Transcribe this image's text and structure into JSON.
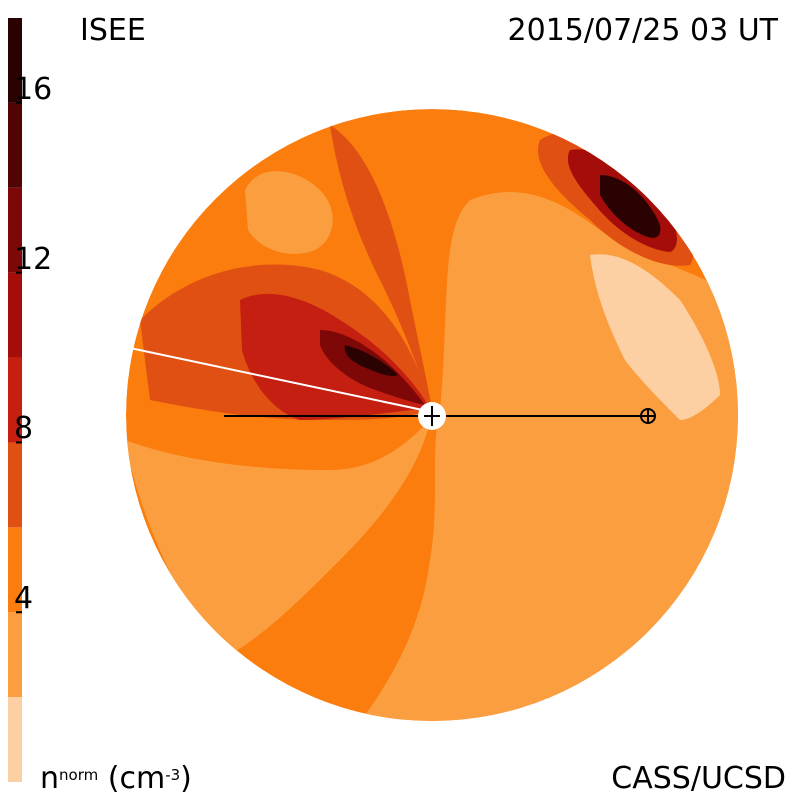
{
  "header": {
    "observatory": "ISEE",
    "datetime": "2015/07/25 03 UT"
  },
  "footer": {
    "credit": "CASS/UCSD",
    "quantity": "n",
    "quantity_sup": "norm",
    "unit_prefix": "(cm",
    "unit_sup": "-3",
    "unit_suffix": ")"
  },
  "colorbar": {
    "min": 0,
    "max": 18,
    "ticks": [
      {
        "value": 4,
        "label": "4"
      },
      {
        "value": 8,
        "label": "8"
      },
      {
        "value": 12,
        "label": "12"
      },
      {
        "value": 16,
        "label": "16"
      }
    ],
    "levels": [
      {
        "from": 0,
        "to": 2,
        "color": "#fdd0a4"
      },
      {
        "from": 2,
        "to": 4,
        "color": "#fb9e40"
      },
      {
        "from": 4,
        "to": 6,
        "color": "#fa7d0d"
      },
      {
        "from": 6,
        "to": 8,
        "color": "#e05012"
      },
      {
        "from": 8,
        "to": 10,
        "color": "#c41f10"
      },
      {
        "from": 10,
        "to": 12,
        "color": "#a50d0a"
      },
      {
        "from": 12,
        "to": 14,
        "color": "#7e0808"
      },
      {
        "from": 14,
        "to": 16,
        "color": "#500404"
      },
      {
        "from": 16,
        "to": 18,
        "color": "#2b0202"
      }
    ]
  }
}
